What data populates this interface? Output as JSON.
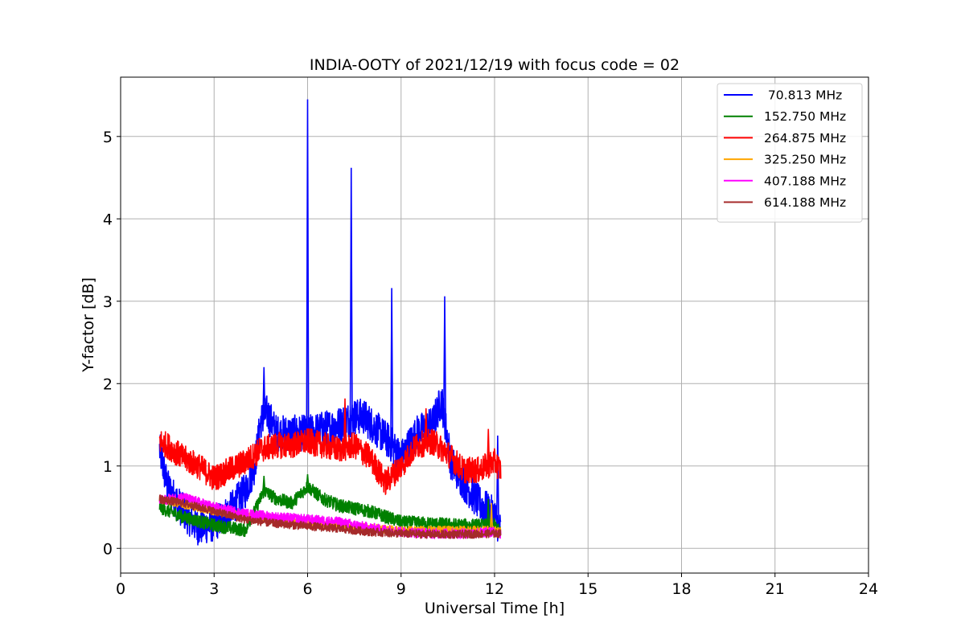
{
  "chart_data": {
    "type": "line",
    "title": "INDIA-OOTY of 2021/12/19 with focus code = 02",
    "xlabel": "Universal Time [h]",
    "ylabel": "Y-factor [dB]",
    "xlim": [
      0,
      24
    ],
    "ylim": [
      -0.3,
      5.72
    ],
    "xticks": [
      0,
      3,
      6,
      9,
      12,
      15,
      18,
      21,
      24
    ],
    "yticks": [
      0,
      1,
      2,
      3,
      4,
      5
    ],
    "xtick_labels": [
      "0",
      "3",
      "6",
      "9",
      "12",
      "15",
      "18",
      "21",
      "24"
    ],
    "ytick_labels": [
      "0",
      "1",
      "2",
      "3",
      "4",
      "5"
    ],
    "grid": true,
    "legend_position": "top-right",
    "series": [
      {
        "name": " 70.813 MHz",
        "color": "#0000ff",
        "noise": 0.22,
        "x": [
          1.25,
          1.5,
          2.0,
          2.5,
          3.0,
          3.5,
          4.0,
          4.3,
          4.5,
          4.7,
          5.0,
          5.5,
          6.0,
          6.5,
          7.0,
          7.5,
          7.8,
          8.2,
          8.6,
          9.0,
          9.5,
          10.0,
          10.3,
          10.6,
          11.0,
          11.5,
          12.0,
          12.2
        ],
        "y": [
          1.2,
          0.75,
          0.45,
          0.25,
          0.3,
          0.45,
          0.7,
          1.0,
          1.55,
          1.65,
          1.4,
          1.4,
          1.4,
          1.45,
          1.5,
          1.6,
          1.6,
          1.45,
          1.3,
          1.1,
          1.4,
          1.5,
          1.8,
          1.05,
          0.8,
          0.55,
          0.4,
          0.2
        ],
        "spikes": [
          [
            6.0,
            5.45
          ],
          [
            7.4,
            4.62
          ],
          [
            8.7,
            3.16
          ],
          [
            10.4,
            3.06
          ],
          [
            12.1,
            1.37
          ],
          [
            4.6,
            2.2
          ]
        ]
      },
      {
        "name": "152.750 MHz",
        "color": "#008000",
        "noise": 0.08,
        "x": [
          1.25,
          2.0,
          3.0,
          4.0,
          4.3,
          4.6,
          5.0,
          5.5,
          6.0,
          6.5,
          7.0,
          8.0,
          9.0,
          10.0,
          11.0,
          12.0,
          12.2
        ],
        "y": [
          0.5,
          0.38,
          0.28,
          0.22,
          0.45,
          0.7,
          0.6,
          0.55,
          0.75,
          0.6,
          0.52,
          0.45,
          0.32,
          0.3,
          0.28,
          0.28,
          0.18
        ],
        "spikes": [
          [
            4.6,
            0.88
          ],
          [
            6.0,
            0.9
          ],
          [
            11.8,
            0.6
          ]
        ]
      },
      {
        "name": "264.875 MHz",
        "color": "#ff0000",
        "noise": 0.16,
        "x": [
          1.25,
          1.5,
          2.0,
          2.5,
          3.0,
          3.5,
          4.0,
          4.5,
          5.0,
          5.5,
          6.0,
          6.5,
          7.0,
          7.5,
          8.0,
          8.5,
          9.0,
          9.5,
          10.0,
          10.5,
          11.0,
          11.5,
          12.0,
          12.2
        ],
        "y": [
          1.3,
          1.25,
          1.1,
          1.0,
          0.85,
          0.95,
          1.05,
          1.2,
          1.25,
          1.25,
          1.3,
          1.25,
          1.2,
          1.25,
          1.1,
          0.8,
          1.0,
          1.25,
          1.3,
          1.15,
          0.95,
          0.95,
          1.05,
          0.95
        ],
        "spikes": [
          [
            7.2,
            1.82
          ],
          [
            9.8,
            1.7
          ],
          [
            11.8,
            1.45
          ]
        ]
      },
      {
        "name": "325.250 MHz",
        "color": "#ffa500",
        "noise": 0.05,
        "x": [
          1.25,
          3.0,
          6.0,
          9.0,
          12.0,
          12.2
        ],
        "y": [
          0.6,
          0.45,
          0.3,
          0.22,
          0.22,
          0.2
        ],
        "spikes": [
          [
            11.9,
            0.55
          ]
        ]
      },
      {
        "name": "407.188 MHz",
        "color": "#ff00ff",
        "noise": 0.06,
        "x": [
          1.25,
          2.0,
          3.0,
          4.0,
          5.0,
          6.0,
          7.0,
          8.0,
          9.0,
          10.0,
          11.0,
          12.0,
          12.2
        ],
        "y": [
          0.58,
          0.62,
          0.5,
          0.42,
          0.38,
          0.35,
          0.32,
          0.25,
          0.2,
          0.18,
          0.18,
          0.2,
          0.18
        ],
        "spikes": []
      },
      {
        "name": "614.188 MHz",
        "color": "#a52a2a",
        "noise": 0.05,
        "x": [
          1.25,
          2.0,
          3.0,
          4.0,
          5.0,
          6.0,
          7.0,
          8.0,
          9.0,
          10.0,
          11.0,
          12.0,
          12.2
        ],
        "y": [
          0.6,
          0.55,
          0.45,
          0.35,
          0.3,
          0.27,
          0.24,
          0.2,
          0.18,
          0.17,
          0.17,
          0.18,
          0.18
        ],
        "spikes": []
      }
    ]
  }
}
